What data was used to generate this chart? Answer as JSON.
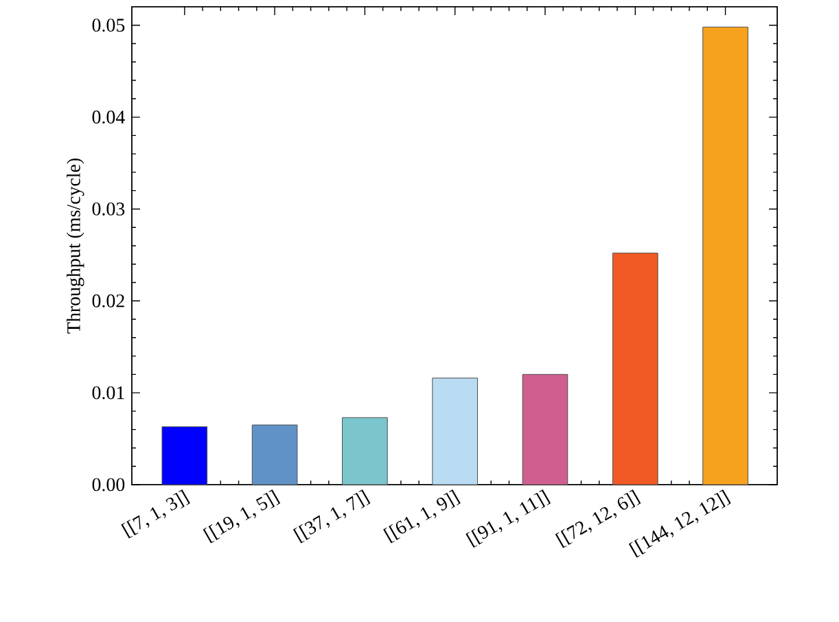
{
  "chart_data": {
    "type": "bar",
    "ylabel": "Throughput (ms/cycle)",
    "categories": [
      "[[7, 1, 3]]",
      "[[19, 1, 5]]",
      "[[37, 1, 7]]",
      "[[61, 1, 9]]",
      "[[91, 1, 11]]",
      "[[72, 12, 6]]",
      "[[144, 12, 12]]"
    ],
    "values": [
      0.0063,
      0.0065,
      0.0073,
      0.0116,
      0.012,
      0.0252,
      0.0498
    ],
    "colors": [
      "#0000ff",
      "#6092c8",
      "#7ac6cc",
      "#b9dcf3",
      "#cf5f8f",
      "#f15a24",
      "#f7a21e"
    ],
    "ylim": [
      0,
      0.052
    ],
    "yticks": [
      {
        "value": 0,
        "label": "0.00"
      },
      {
        "value": 0.01,
        "label": "0.01"
      },
      {
        "value": 0.02,
        "label": "0.02"
      },
      {
        "value": 0.03,
        "label": "0.03"
      },
      {
        "value": 0.04,
        "label": "0.04"
      },
      {
        "value": 0.05,
        "label": "0.05"
      }
    ]
  }
}
